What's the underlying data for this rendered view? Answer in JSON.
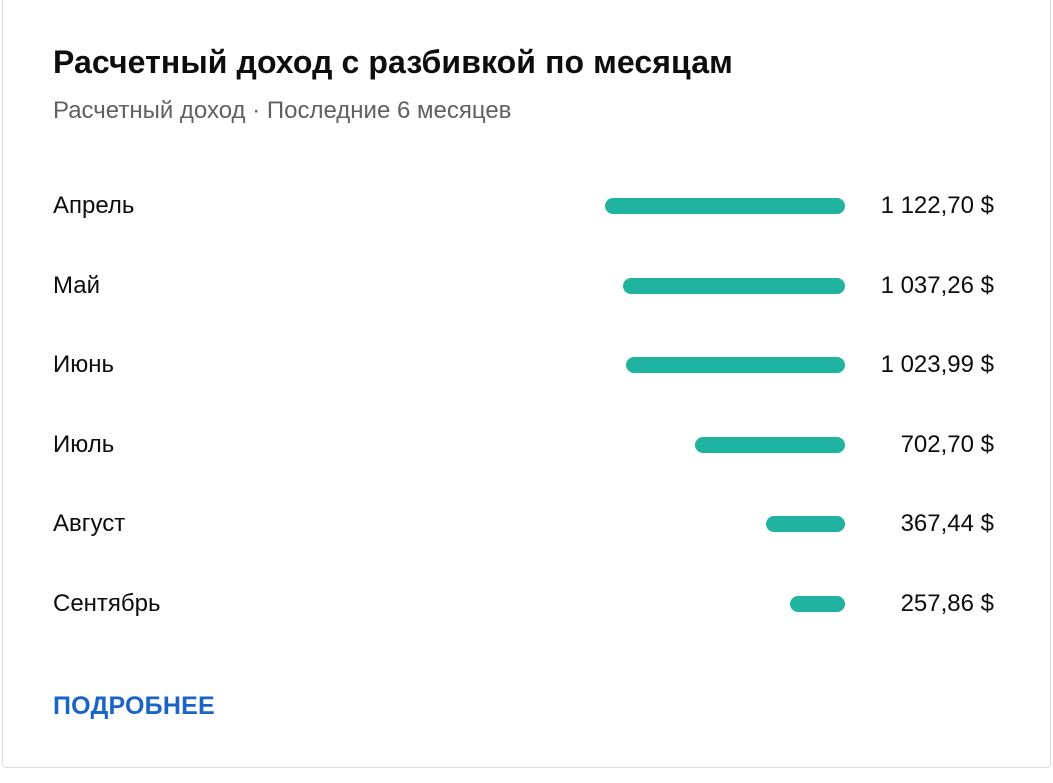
{
  "card": {
    "title": "Расчетный доход с разбивкой по месяцам",
    "subtitle": "Расчетный доход · Последние 6 месяцев",
    "more_link": "ПОДРОБНЕЕ"
  },
  "colors": {
    "bar": "#1fb3a0",
    "link": "#1a63c7",
    "subtitle": "#606060"
  },
  "chart_data": {
    "type": "bar",
    "orientation": "horizontal",
    "title": "Расчетный доход с разбивкой по месяцам",
    "subtitle": "Расчетный доход · Последние 6 месяцев",
    "categories": [
      "Апрель",
      "Май",
      "Июнь",
      "Июль",
      "Август",
      "Сентябрь"
    ],
    "values": [
      1122.7,
      1037.26,
      1023.99,
      702.7,
      367.44,
      257.86
    ],
    "value_labels": [
      "1 122,70 $",
      "1 037,26 $",
      "1 023,99 $",
      "702,70 $",
      "367,44 $",
      "257,86 $"
    ],
    "bars_aligned": "right",
    "grid": false,
    "legend": "none"
  }
}
